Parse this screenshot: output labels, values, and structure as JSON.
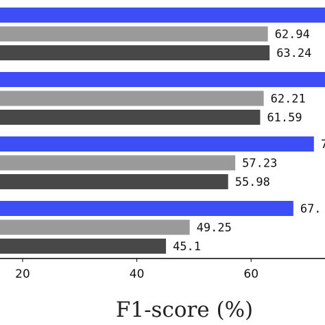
{
  "chart_data": {
    "type": "bar",
    "orientation": "horizontal",
    "xlabel": "F1-score (%)",
    "xlim": [
      16,
      74
    ],
    "xticks": [
      20,
      40,
      60
    ],
    "colors": [
      "#3d4ef7",
      "#9a9a9a",
      "#484848"
    ],
    "groups": [
      {
        "values": [
          76,
          62.94,
          63.24
        ],
        "labels": [
          "",
          "62.94",
          "63.24"
        ]
      },
      {
        "values": [
          73,
          62.21,
          61.59
        ],
        "labels": [
          "",
          "62.21",
          "61.59"
        ]
      },
      {
        "values": [
          71,
          57.23,
          55.98
        ],
        "labels": [
          "7",
          "57.23",
          "55.98"
        ]
      },
      {
        "values": [
          67.4,
          49.25,
          45.1
        ],
        "labels": [
          "67.",
          "49.25",
          "45.1"
        ]
      }
    ]
  }
}
